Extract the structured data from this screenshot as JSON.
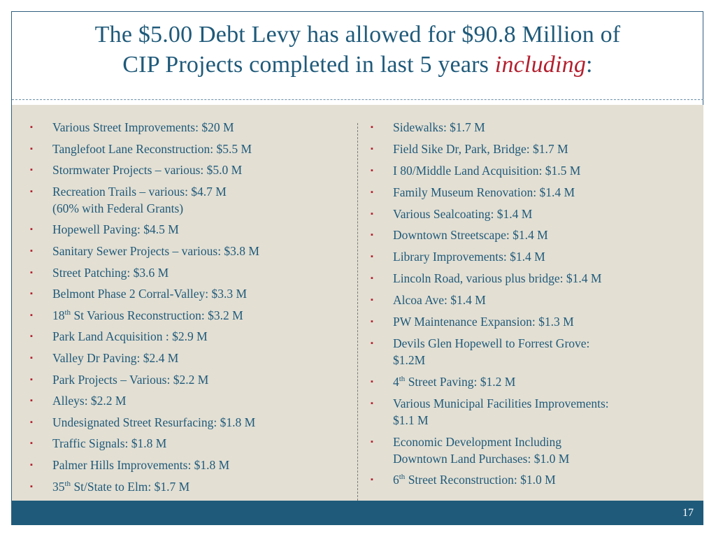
{
  "title": {
    "line1": "The $5.00 Debt Levy has allowed for $90.8 Million of",
    "line2_main": "CIP Projects completed in last 5 years ",
    "line2_emph": "including",
    "line2_end": ":"
  },
  "left_items": [
    {
      "text": "Various Street Improvements:  $20 M"
    },
    {
      "text": "Tanglefoot  Lane Reconstruction:  $5.5 M"
    },
    {
      "text": "Stormwater Projects – various:  $5.0 M"
    },
    {
      "text": "Recreation Trails – various:  $4.7 M",
      "line2": "(60% with Federal Grants)"
    },
    {
      "text": "Hopewell Paving:  $4.5 M"
    },
    {
      "text": "Sanitary Sewer Projects – various: $3.8 M"
    },
    {
      "text": "Street Patching:  $3.6 M"
    },
    {
      "text": "Belmont Phase 2 Corral-Valley: $3.3 M"
    },
    {
      "pre": "18",
      "sup": "th",
      "text": " St Various Reconstruction:  $3.2 M"
    },
    {
      "text": "Park Land Acquisition :  $2.9 M"
    },
    {
      "text": "Valley Dr Paving:  $2.4 M"
    },
    {
      "text": "Park Projects – Various:  $2.2 M"
    },
    {
      "text": "Alleys:  $2.2 M"
    },
    {
      "text": "Undesignated Street Resurfacing:  $1.8 M"
    },
    {
      "text": "Traffic Signals:  $1.8 M"
    },
    {
      "text": "Palmer Hills Improvements:  $1.8 M"
    },
    {
      "pre": "35",
      "sup": "th",
      "text": " St/State to Elm: $1.7 M"
    }
  ],
  "right_items": [
    {
      "text": "Sidewalks:  $1.7 M"
    },
    {
      "text": "Field Sike Dr, Park, Bridge: $1.7 M"
    },
    {
      "text": "I 80/Middle Land Acquisition:  $1.5 M"
    },
    {
      "text": "Family Museum Renovation:  $1.4 M"
    },
    {
      "text": "Various Sealcoating:  $1.4 M"
    },
    {
      "text": "Downtown Streetscape:  $1.4 M"
    },
    {
      "text": "Library Improvements:  $1.4 M"
    },
    {
      "text": "Lincoln Road, various plus bridge:  $1.4 M"
    },
    {
      "text": "Alcoa  Ave: $1.4 M"
    },
    {
      "text": "PW Maintenance Expansion: $1.3 M"
    },
    {
      "text": "Devils Glen Hopewell to Forrest Grove:",
      "line2": "$1.2M"
    },
    {
      "pre": "4",
      "sup": "th",
      "text": " Street Paving:  $1.2 M"
    },
    {
      "text": "Various Municipal Facilities Improvements:",
      "line2": "$1.1 M"
    },
    {
      "text": "Economic Development Including",
      "line2": "Downtown Land Purchases:  $1.0 M"
    },
    {
      "pre": "6",
      "sup": "th",
      "text": " Street Reconstruction: $1.0 M"
    }
  ],
  "bullet_glyph": "▪",
  "page_number": "17",
  "colors": {
    "title": "#1f5a7a",
    "accent": "#b3202f",
    "content_bg": "#e3dfd3",
    "footer": "#1f5a7a"
  }
}
